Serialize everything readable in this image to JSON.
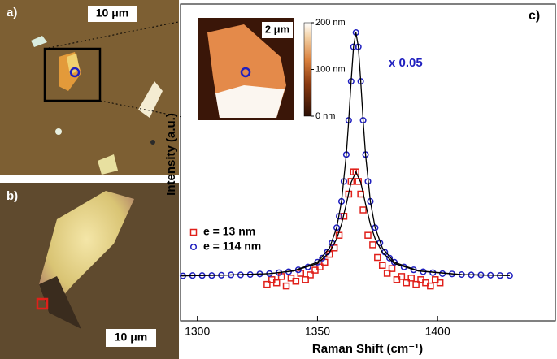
{
  "chart_data": {
    "type": "scatter",
    "panel_label": "c)",
    "x_label": "Raman Shift (cm⁻¹)",
    "y_label": "Intensity (a.u.)",
    "annotation": "x 0.05",
    "annotation_color": "#1f1fbf",
    "xlim": [
      1293,
      1449
    ],
    "xticks": [
      1300,
      1350,
      1400
    ],
    "ylim": [
      0,
      100
    ],
    "legend": "left",
    "series": [
      {
        "name": "e = 13 nm",
        "color": "#e0201a",
        "marker": "square",
        "x": [
          1329,
          1331,
          1333,
          1335,
          1337,
          1339,
          1341,
          1343,
          1345,
          1347,
          1349,
          1351,
          1353,
          1355,
          1357,
          1359,
          1361,
          1363,
          1364,
          1365,
          1366,
          1367,
          1368,
          1369,
          1371,
          1373,
          1375,
          1377,
          1379,
          1381,
          1383,
          1385,
          1387,
          1389,
          1391,
          1393,
          1395,
          1397,
          1399,
          1401
        ],
        "values": [
          11.5,
          13,
          12,
          14,
          11,
          13.5,
          12.5,
          15,
          13,
          14.5,
          16,
          17,
          18.5,
          21,
          23,
          27,
          33,
          40,
          44,
          47,
          47,
          44,
          40,
          35,
          27,
          24,
          20,
          17.5,
          15,
          16.5,
          13,
          14,
          12,
          13.5,
          11.5,
          13,
          12,
          11,
          13,
          12
        ]
      },
      {
        "name": "e = 114 nm",
        "color": "#1f1fbf",
        "marker": "circle",
        "x": [
          1294,
          1298,
          1302,
          1306,
          1310,
          1314,
          1318,
          1322,
          1326,
          1330,
          1334,
          1338,
          1342,
          1346,
          1350,
          1352,
          1354,
          1356,
          1358,
          1359,
          1360,
          1361,
          1362,
          1363,
          1364,
          1365,
          1366,
          1367,
          1368,
          1369,
          1370,
          1371,
          1372,
          1374,
          1376,
          1378,
          1380,
          1382,
          1386,
          1390,
          1394,
          1398,
          1402,
          1406,
          1410,
          1414,
          1418,
          1422,
          1426,
          1430
        ],
        "values": [
          14.2,
          14.3,
          14.3,
          14.3,
          14.4,
          14.5,
          14.5,
          14.6,
          14.8,
          14.9,
          15.2,
          15.5,
          16.1,
          17.0,
          18.5,
          19.8,
          21.7,
          24.6,
          29.4,
          33.0,
          37.7,
          44.0,
          52.5,
          63.3,
          75.6,
          86.5,
          91,
          86.5,
          75.6,
          63.3,
          52.5,
          44.0,
          37.7,
          29.4,
          24.6,
          21.7,
          19.8,
          18.5,
          17.0,
          16.1,
          15.5,
          15.2,
          14.9,
          14.8,
          14.6,
          14.5,
          14.5,
          14.4,
          14.3,
          14.3
        ]
      },
      {
        "color": "#000000",
        "marker": "line",
        "x": [
          1293,
          1310,
          1330,
          1340,
          1350,
          1355,
          1358,
          1360,
          1362,
          1364,
          1366,
          1368,
          1370,
          1372,
          1374,
          1377,
          1382,
          1392,
          1410,
          1430
        ],
        "values": [
          14.2,
          14.4,
          14.9,
          15.7,
          18.1,
          21.6,
          25.9,
          30.5,
          36.9,
          43.7,
          47,
          43.7,
          36.9,
          30.5,
          25.9,
          21.6,
          18.1,
          15.7,
          14.6,
          14.3
        ]
      },
      {
        "color": "#000000",
        "marker": "line",
        "x": [
          1293,
          1310,
          1330,
          1340,
          1350,
          1355,
          1358,
          1360,
          1362,
          1363,
          1364,
          1365,
          1366,
          1367,
          1368,
          1369,
          1370,
          1372,
          1374,
          1377,
          1382,
          1392,
          1410,
          1430
        ],
        "values": [
          14.2,
          14.4,
          14.9,
          15.8,
          18.5,
          23.0,
          29.4,
          37.7,
          52.5,
          63.3,
          75.6,
          86.5,
          91,
          86.5,
          75.6,
          63.3,
          52.5,
          37.7,
          29.4,
          23.0,
          18.5,
          15.8,
          14.6,
          14.3
        ]
      }
    ]
  },
  "panels": {
    "a": {
      "label": "a)",
      "scale_bar": "10 μm"
    },
    "b": {
      "label": "b)",
      "scale_bar": "10 μm"
    },
    "inset": {
      "scale_bar": "2 μm",
      "colorbar": {
        "lim": [
          0,
          200
        ],
        "ticks": [
          {
            "value": 200,
            "label": "200 nm"
          },
          {
            "value": 100,
            "label": "100 nm"
          },
          {
            "value": 0,
            "label": "0 nm"
          }
        ]
      }
    }
  }
}
